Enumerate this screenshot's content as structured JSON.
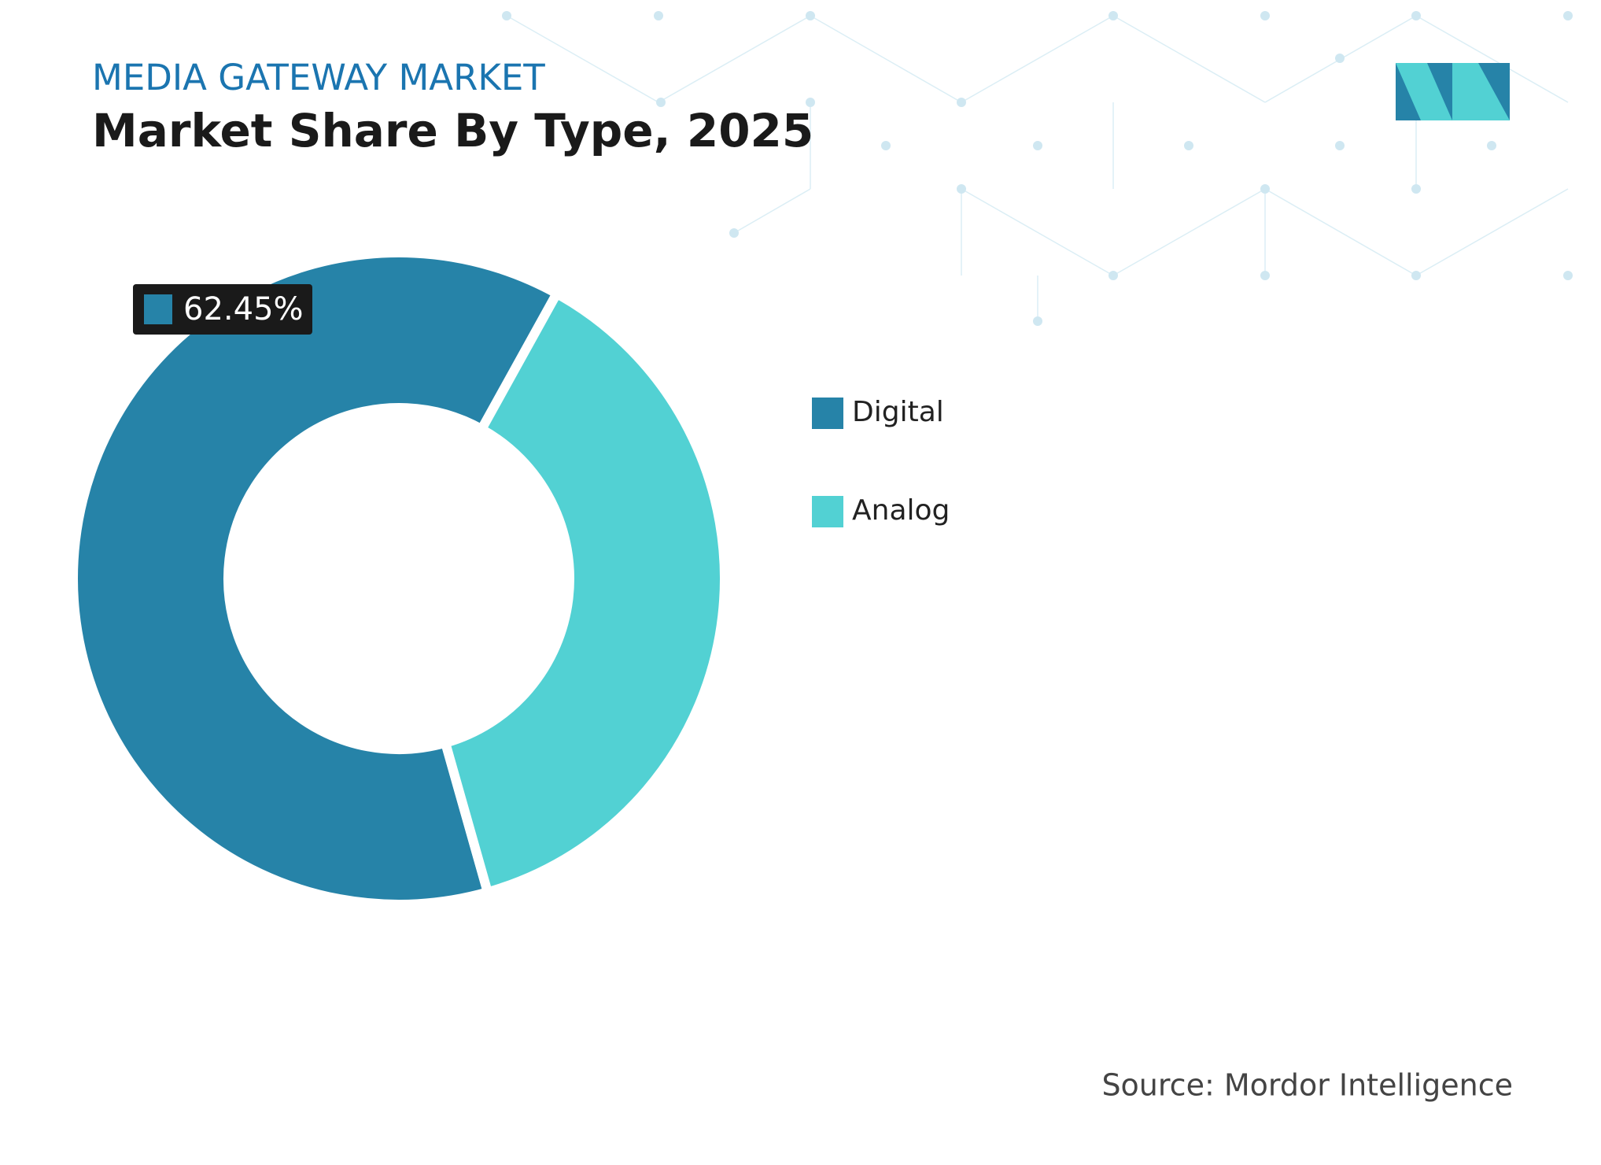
{
  "chart_data": {
    "type": "donut",
    "title": "MEDIA GATEWAY MARKET",
    "subtitle": "Market Share By Type, 2025",
    "categories": [
      "Digital",
      "Analog"
    ],
    "values": [
      62.45,
      37.55
    ],
    "value_labels": [
      "62.45%",
      null
    ],
    "colors": [
      "#2683a8",
      "#52d1d3"
    ],
    "source": "Source: Mordor Intelligence"
  }
}
